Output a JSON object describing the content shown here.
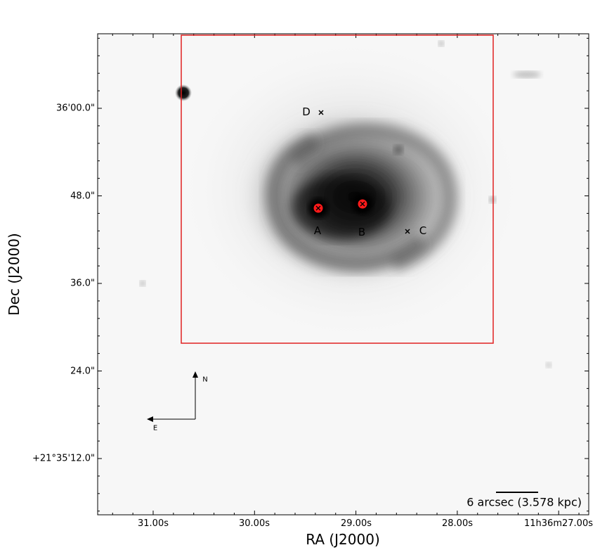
{
  "axes": {
    "xlabel": "RA (J2000)",
    "ylabel": "Dec (J2000)",
    "ra_ticks": [
      "31.00s",
      "30.00s",
      "29.00s",
      "28.00s",
      "11h36m27.00s"
    ],
    "dec_ticks": [
      "36'00.0\"",
      "48.0\"",
      "36.0\"",
      "24.0\"",
      "+21°35'12.0\""
    ]
  },
  "sources": [
    {
      "id": "A",
      "label": "A",
      "marker": "red-circle-cross"
    },
    {
      "id": "B",
      "label": "B",
      "marker": "red-circle-cross"
    },
    {
      "id": "C",
      "label": "C",
      "marker": "cross"
    },
    {
      "id": "D",
      "label": "D",
      "marker": "cross"
    }
  ],
  "compass": {
    "north": "N",
    "east": "E"
  },
  "scalebar": {
    "label": "6 arcsec (3.578 kpc)"
  },
  "colors": {
    "box": "#e02020",
    "marker_fill": "#ff1a1a",
    "frame": "#000000"
  }
}
